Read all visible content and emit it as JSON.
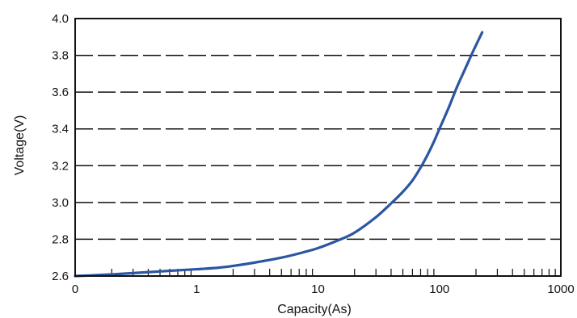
{
  "chart_data": {
    "type": "line",
    "title": "",
    "xlabel": "Capacity(As)",
    "ylabel": "Voltage(V)",
    "x_scale": "log",
    "xlim": [
      0.1,
      1000
    ],
    "ylim": [
      2.6,
      4.0
    ],
    "x_ticks": [
      {
        "value": 0.1,
        "label": "0"
      },
      {
        "value": 1,
        "label": "1"
      },
      {
        "value": 10,
        "label": "10"
      },
      {
        "value": 100,
        "label": "100"
      },
      {
        "value": 1000,
        "label": "1000"
      }
    ],
    "y_ticks": [
      {
        "value": 2.6,
        "label": "2.6"
      },
      {
        "value": 2.8,
        "label": "2.8"
      },
      {
        "value": 3.0,
        "label": "3.0"
      },
      {
        "value": 3.2,
        "label": "3.2"
      },
      {
        "value": 3.4,
        "label": "3.4"
      },
      {
        "value": 3.6,
        "label": "3.6"
      },
      {
        "value": 3.8,
        "label": "3.8"
      },
      {
        "value": 4.0,
        "label": "4.0"
      }
    ],
    "grid": "horizontal-dashed",
    "line_color": "#2b56a0",
    "series": [
      {
        "x": [
          0.1,
          0.13,
          0.2,
          0.3,
          0.5,
          0.7,
          1,
          1.5,
          2,
          3,
          5,
          7,
          10,
          15,
          20,
          30,
          40,
          50,
          60,
          70,
          80,
          90,
          100,
          120,
          140,
          160,
          180,
          200,
          225
        ],
        "y": [
          2.6,
          2.603,
          2.609,
          2.616,
          2.625,
          2.631,
          2.637,
          2.645,
          2.655,
          2.673,
          2.7,
          2.723,
          2.752,
          2.797,
          2.836,
          2.92,
          2.995,
          3.058,
          3.12,
          3.19,
          3.26,
          3.33,
          3.4,
          3.52,
          3.63,
          3.715,
          3.79,
          3.855,
          3.925
        ]
      }
    ]
  }
}
